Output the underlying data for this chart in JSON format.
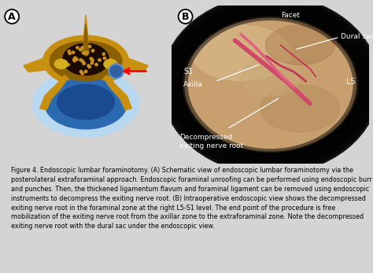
{
  "panel_A_label": "A",
  "panel_B_label": "B",
  "bg_color_A": "#e8f4ec",
  "bg_color_B": "#000000",
  "caption_bg": "#d4d4d4",
  "label_S1": "S1",
  "label_L5": "L5",
  "label_Facet": "Facet",
  "label_Axilla": "Axilla",
  "label_Dural_sac": "Dural sac",
  "label_Decompressed": "Decompressed\nexiting nerve root",
  "caption_bold": "Figure 4. Endoscopic lumbar foraminotomy.",
  "caption_A_bold": "(A)",
  "caption_A_text": " Schematic view of endoscopic lumbar foraminotomy via the posterolateral extraforaminal approach. Endoscopic foraminal unroofing can be performed using endoscopic burr and punches. Then, the thickened ligamentum flavum and foraminal ligament can be removed using endoscopic instruments to decompress the exiting nerve root. ",
  "caption_B_bold": "(B)",
  "caption_B_text": " Intraoperative endoscopic view shows the decompressed exiting nerve root in the foraminal zone at the right L5-S1 level. The end point of the procedure is free mobilization of the exiting nerve root from the axillar zone to the extraforaminal zone. Note the decompressed exiting nerve root with the dural sac under the endoscopic view.",
  "gold_dark": "#8B6000",
  "gold_mid": "#c89010",
  "gold_light": "#e0b030",
  "canal_dark": "#1a0a00",
  "disc_light_blue": "#b8d8f0",
  "disc_dark_blue": "#2b6ab0",
  "endo_blue": "#3060a0",
  "nerve_pink": "#d04060",
  "tissue_tan": "#c8a070",
  "tissue_light": "#d8b888"
}
